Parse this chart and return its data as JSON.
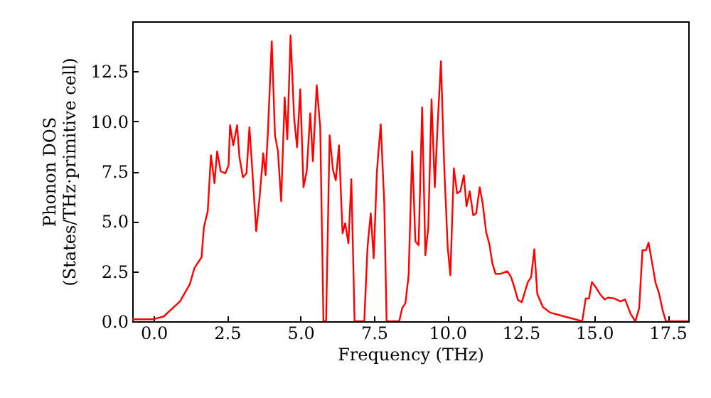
{
  "chart_data": {
    "type": "line",
    "xlabel": "Frequency (THz)",
    "ylabel": "Phonon DOS\n(States/THz·primitive cell)",
    "x": [
      -0.73,
      -0.4,
      0,
      0.34,
      0.9,
      1.23,
      1.39,
      1.63,
      1.71,
      1.84,
      1.95,
      2.07,
      2.16,
      2.28,
      2.44,
      2.55,
      2.6,
      2.71,
      2.84,
      2.92,
      3.04,
      3.16,
      3.26,
      3.36,
      3.49,
      3.6,
      3.73,
      3.81,
      3.89,
      4.02,
      4.13,
      4.23,
      4.34,
      4.46,
      4.55,
      4.66,
      4.78,
      4.88,
      4.99,
      5.1,
      5.21,
      5.33,
      5.42,
      5.55,
      5.67,
      5.78,
      5.87,
      5.99,
      6.1,
      6.2,
      6.31,
      6.43,
      6.52,
      6.63,
      6.73,
      6.84,
      7.17,
      7.28,
      7.39,
      7.49,
      7.6,
      7.73,
      7.85,
      7.93,
      8.36,
      8.46,
      8.57,
      8.68,
      8.8,
      8.91,
      9.02,
      9.14,
      9.25,
      9.35,
      9.46,
      9.57,
      9.67,
      9.78,
      9.89,
      10.01,
      10.1,
      10.22,
      10.33,
      10.44,
      10.56,
      10.65,
      10.76,
      10.88,
      10.98,
      11.1,
      11.2,
      11.32,
      11.43,
      11.53,
      11.64,
      11.8,
      12.04,
      12.17,
      12.29,
      12.4,
      12.53,
      12.74,
      12.85,
      12.96,
      13.06,
      13.25,
      13.5,
      13.98,
      14.59,
      14.71,
      14.82,
      14.92,
      15.03,
      15.19,
      15.35,
      15.47,
      15.68,
      15.89,
      16.05,
      16.24,
      16.4,
      16.53,
      16.64,
      16.76,
      16.85,
      16.96,
      17.09,
      17.2,
      17.33,
      17.44,
      18.2
    ],
    "series": [
      {
        "color": "#ff0000",
        "values": [
          0.1,
          0.1,
          0.1,
          0.24,
          1.0,
          1.85,
          2.67,
          3.2,
          4.7,
          5.5,
          8.3,
          6.9,
          8.5,
          7.5,
          7.4,
          7.8,
          9.8,
          8.8,
          9.8,
          8.2,
          7.2,
          7.4,
          9.7,
          7.5,
          4.5,
          6.1,
          8.4,
          7.3,
          9.5,
          14.0,
          9.3,
          8.5,
          6.0,
          11.2,
          9.1,
          14.3,
          10.2,
          8.7,
          11.6,
          6.7,
          7.5,
          10.4,
          8.0,
          11.8,
          9.7,
          0,
          0,
          9.3,
          7.6,
          7.05,
          8.8,
          4.4,
          4.9,
          3.9,
          7.1,
          0,
          0,
          3.7,
          5.4,
          3.15,
          7.5,
          9.85,
          5.9,
          0,
          0,
          0.66,
          0.9,
          2.3,
          8.5,
          4.0,
          3.8,
          10.7,
          3.3,
          4.7,
          11.1,
          6.7,
          9.9,
          13.0,
          7.8,
          3.7,
          2.3,
          7.65,
          6.4,
          6.5,
          7.3,
          5.75,
          6.5,
          5.3,
          5.4,
          6.7,
          5.9,
          4.45,
          3.85,
          2.9,
          2.37,
          2.37,
          2.5,
          2.2,
          1.65,
          1.07,
          0.95,
          1.96,
          2.2,
          3.6,
          1.37,
          0.71,
          0.43,
          0.24,
          0,
          1.14,
          1.14,
          1.96,
          1.75,
          1.37,
          1.09,
          1.18,
          1.14,
          0.99,
          1.09,
          0.36,
          0,
          0.66,
          3.55,
          3.55,
          3.93,
          3.0,
          1.9,
          1.43,
          0.54,
          0,
          0
        ]
      }
    ],
    "xlim": [
      -0.73,
      18.2
    ],
    "ylim": [
      0,
      15
    ],
    "xticks": [
      {
        "value": 0,
        "label": "0.0"
      },
      {
        "value": 2.5,
        "label": "2.5"
      },
      {
        "value": 5,
        "label": "5.0"
      },
      {
        "value": 7.5,
        "label": "7.5"
      },
      {
        "value": 10,
        "label": "10.0"
      },
      {
        "value": 12.5,
        "label": "12.5"
      },
      {
        "value": 15,
        "label": "15.0"
      },
      {
        "value": 17.5,
        "label": "17.5"
      }
    ],
    "yticks": [
      {
        "value": 0,
        "label": "0.0"
      },
      {
        "value": 2.5,
        "label": "2.5"
      },
      {
        "value": 5,
        "label": "5.0"
      },
      {
        "value": 7.5,
        "label": "7.5"
      },
      {
        "value": 10,
        "label": "10.0"
      },
      {
        "value": 12.5,
        "label": "12.5"
      }
    ],
    "marker": "none",
    "line_style": "solid"
  }
}
